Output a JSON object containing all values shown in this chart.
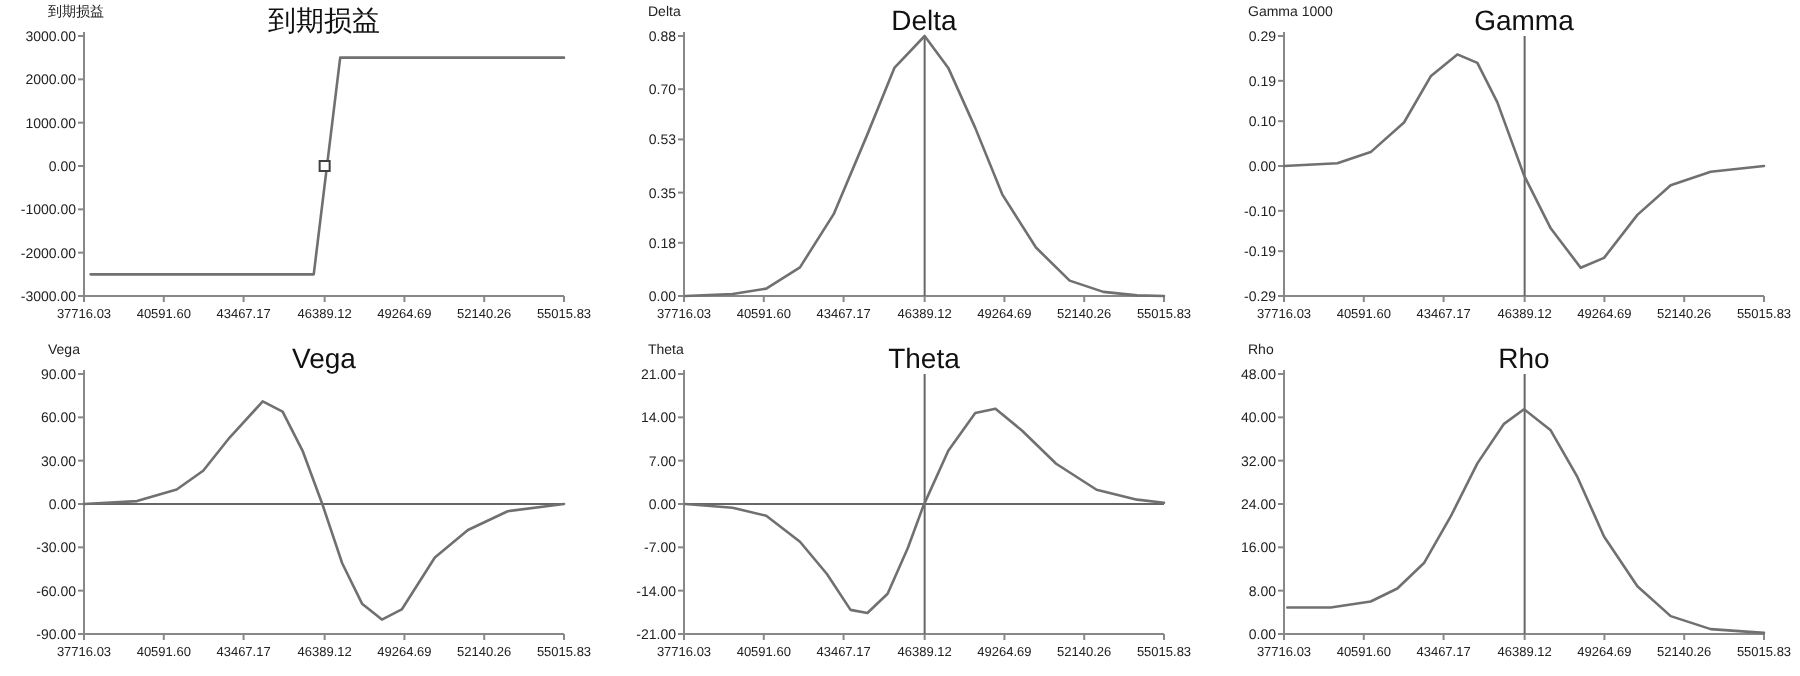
{
  "chart_data": [
    {
      "type": "line",
      "title": "到期损益",
      "ylabel": "到期损益",
      "xlim": [
        37716.03,
        55015.83
      ],
      "ylim": [
        -3000,
        3000
      ],
      "xticks": [
        {
          "value": 37716.03,
          "label": "37716.03"
        },
        {
          "value": 40591.6,
          "label": "40591.60"
        },
        {
          "value": 43467.17,
          "label": "43467.17"
        },
        {
          "value": 46389.12,
          "label": "46389.12"
        },
        {
          "value": 49264.69,
          "label": "49264.69"
        },
        {
          "value": 52140.26,
          "label": "52140.26"
        },
        {
          "value": 55015.83,
          "label": "55015.83"
        }
      ],
      "yticks": [
        {
          "value": -3000,
          "label": "-3000.00"
        },
        {
          "value": -2000,
          "label": "-2000.00"
        },
        {
          "value": -1000,
          "label": "-1000.00"
        },
        {
          "value": 0,
          "label": "0.00"
        },
        {
          "value": 1000,
          "label": "1000.00"
        },
        {
          "value": 2000,
          "label": "2000.00"
        },
        {
          "value": 3000,
          "label": "3000.00"
        }
      ],
      "series": [
        {
          "type": "line",
          "color": "#707070",
          "x": [
            37955,
            45996,
            46950,
            55015
          ],
          "values": [
            -2500,
            -2500,
            2500,
            2500
          ]
        },
        {
          "type": "scatter",
          "color": "#404040",
          "marker": "square",
          "x": [
            46389.12
          ],
          "values": [
            0
          ]
        }
      ]
    },
    {
      "type": "line",
      "title": "Delta",
      "ylabel": "Delta",
      "xlim": [
        37716.03,
        55015.83
      ],
      "ylim": [
        0,
        0.88
      ],
      "xticks": [
        {
          "value": 37716.03,
          "label": "37716.03"
        },
        {
          "value": 40591.6,
          "label": "40591.60"
        },
        {
          "value": 43467.17,
          "label": "43467.17"
        },
        {
          "value": 46389.12,
          "label": "46389.12"
        },
        {
          "value": 49264.69,
          "label": "49264.69"
        },
        {
          "value": 52140.26,
          "label": "52140.26"
        },
        {
          "value": 55015.83,
          "label": "55015.83"
        }
      ],
      "yticks": [
        {
          "value": 0,
          "label": "0.00"
        },
        {
          "value": 0.18,
          "label": "0.18"
        },
        {
          "value": 0.35,
          "label": "0.35"
        },
        {
          "value": 0.53,
          "label": "0.53"
        },
        {
          "value": 0.7,
          "label": "0.70"
        },
        {
          "value": 0.88,
          "label": "0.88"
        }
      ],
      "ref_lines": [
        {
          "axis": "x",
          "value": 46389.12
        }
      ],
      "series": [
        {
          "type": "line",
          "color": "#707070",
          "x": [
            37765,
            39466,
            40681,
            41896,
            43110,
            44325,
            45298,
            46389.12,
            47241,
            48213,
            49186,
            50401,
            51616,
            52831,
            54045,
            55015
          ],
          "values": [
            0,
            0.007,
            0.025,
            0.097,
            0.277,
            0.547,
            0.772,
            0.88,
            0.772,
            0.569,
            0.344,
            0.164,
            0.052,
            0.014,
            0.002,
            0
          ]
        }
      ]
    },
    {
      "type": "line",
      "title": "Gamma",
      "ylabel": "Gamma 1000",
      "xlim": [
        37716.03,
        55015.83
      ],
      "ylim": [
        -0.29,
        0.29
      ],
      "xticks": [
        {
          "value": 37716.03,
          "label": "37716.03"
        },
        {
          "value": 40591.6,
          "label": "40591.60"
        },
        {
          "value": 43467.17,
          "label": "43467.17"
        },
        {
          "value": 46389.12,
          "label": "46389.12"
        },
        {
          "value": 49264.69,
          "label": "49264.69"
        },
        {
          "value": 52140.26,
          "label": "52140.26"
        },
        {
          "value": 55015.83,
          "label": "55015.83"
        }
      ],
      "yticks": [
        {
          "value": -0.29,
          "label": "-0.29"
        },
        {
          "value": -0.19,
          "label": "-0.19"
        },
        {
          "value": -0.1,
          "label": "-0.10"
        },
        {
          "value": 0,
          "label": "0.00"
        },
        {
          "value": 0.1,
          "label": "0.10"
        },
        {
          "value": 0.19,
          "label": "0.19"
        },
        {
          "value": 0.29,
          "label": "0.29"
        }
      ],
      "ref_lines": [
        {
          "axis": "x",
          "value": 46389.12
        }
      ],
      "series": [
        {
          "type": "line",
          "color": "#707070",
          "x": [
            37717,
            39638,
            40840,
            42041,
            43003,
            43964,
            44685,
            45406,
            46367,
            47328,
            48409,
            49250,
            50452,
            51653,
            53095,
            55015
          ],
          "values": [
            0,
            0.006,
            0.031,
            0.097,
            0.2,
            0.249,
            0.23,
            0.142,
            -0.021,
            -0.139,
            -0.227,
            -0.205,
            -0.109,
            -0.043,
            -0.013,
            0
          ]
        }
      ]
    },
    {
      "type": "line",
      "title": "Vega",
      "ylabel": "Vega",
      "xlim": [
        37716.03,
        55015.83
      ],
      "ylim": [
        -90,
        90
      ],
      "xticks": [
        {
          "value": 37716.03,
          "label": "37716.03"
        },
        {
          "value": 40591.6,
          "label": "40591.60"
        },
        {
          "value": 43467.17,
          "label": "43467.17"
        },
        {
          "value": 46389.12,
          "label": "46389.12"
        },
        {
          "value": 49264.69,
          "label": "49264.69"
        },
        {
          "value": 52140.26,
          "label": "52140.26"
        },
        {
          "value": 55015.83,
          "label": "55015.83"
        }
      ],
      "yticks": [
        {
          "value": -90,
          "label": "-90.00"
        },
        {
          "value": -60,
          "label": "-60.00"
        },
        {
          "value": -30,
          "label": "-30.00"
        },
        {
          "value": 0,
          "label": "0.00"
        },
        {
          "value": 30,
          "label": "30.00"
        },
        {
          "value": 60,
          "label": "60.00"
        },
        {
          "value": 90,
          "label": "90.00"
        }
      ],
      "ref_lines": [
        {
          "axis": "y",
          "value": 0
        }
      ],
      "series": [
        {
          "type": "line",
          "color": "#707070",
          "x": [
            37717,
            39625,
            41056,
            42011,
            42965,
            44158,
            44874,
            45590,
            46305,
            47021,
            47737,
            48453,
            49168,
            50361,
            51554,
            52986,
            55015
          ],
          "values": [
            0,
            2,
            10,
            23,
            46,
            71,
            64,
            37,
            0,
            -41,
            -69,
            -80,
            -73,
            -37,
            -18,
            -5,
            0
          ]
        }
      ]
    },
    {
      "type": "line",
      "title": "Theta",
      "ylabel": "Theta",
      "xlim": [
        37716.03,
        55015.83
      ],
      "ylim": [
        -21,
        21
      ],
      "xticks": [
        {
          "value": 37716.03,
          "label": "37716.03"
        },
        {
          "value": 40591.6,
          "label": "40591.60"
        },
        {
          "value": 43467.17,
          "label": "43467.17"
        },
        {
          "value": 46389.12,
          "label": "46389.12"
        },
        {
          "value": 49264.69,
          "label": "49264.69"
        },
        {
          "value": 52140.26,
          "label": "52140.26"
        },
        {
          "value": 55015.83,
          "label": "55015.83"
        }
      ],
      "yticks": [
        {
          "value": -21,
          "label": "-21.00"
        },
        {
          "value": -14,
          "label": "-14.00"
        },
        {
          "value": -7,
          "label": "-7.00"
        },
        {
          "value": 0,
          "label": "0.00"
        },
        {
          "value": 7,
          "label": "7.00"
        },
        {
          "value": 14,
          "label": "14.00"
        },
        {
          "value": 21,
          "label": "21.00"
        }
      ],
      "ref_lines": [
        {
          "axis": "x",
          "value": 46389.12
        },
        {
          "axis": "y",
          "value": 0
        }
      ],
      "series": [
        {
          "type": "line",
          "color": "#707070",
          "x": [
            37765,
            39466,
            40681,
            41896,
            42868,
            43718,
            44325,
            45054,
            45783,
            46343,
            47241,
            48213,
            48942,
            49914,
            51129,
            52587,
            54045,
            55015
          ],
          "values": [
            0,
            -0.6,
            -1.9,
            -6.1,
            -11.3,
            -17.1,
            -17.6,
            -14.5,
            -7.1,
            -0.3,
            8.6,
            14.7,
            15.4,
            11.8,
            6.5,
            2.3,
            0.7,
            0.2
          ]
        }
      ]
    },
    {
      "type": "line",
      "title": "Rho",
      "ylabel": "Rho",
      "xlim": [
        37716.03,
        55015.83
      ],
      "ylim": [
        0,
        48
      ],
      "xticks": [
        {
          "value": 37716.03,
          "label": "37716.03"
        },
        {
          "value": 40591.6,
          "label": "40591.60"
        },
        {
          "value": 43467.17,
          "label": "43467.17"
        },
        {
          "value": 46389.12,
          "label": "46389.12"
        },
        {
          "value": 49264.69,
          "label": "49264.69"
        },
        {
          "value": 52140.26,
          "label": "52140.26"
        },
        {
          "value": 55015.83,
          "label": "55015.83"
        }
      ],
      "yticks": [
        {
          "value": 0,
          "label": "0.00"
        },
        {
          "value": 8,
          "label": "8.00"
        },
        {
          "value": 16,
          "label": "16.00"
        },
        {
          "value": 24,
          "label": "24.00"
        },
        {
          "value": 32,
          "label": "32.00"
        },
        {
          "value": 40,
          "label": "40.00"
        },
        {
          "value": 48,
          "label": "48.00"
        }
      ],
      "ref_lines": [
        {
          "axis": "x",
          "value": 46389.12
        }
      ],
      "series": [
        {
          "type": "line",
          "color": "#707070",
          "x": [
            37836,
            39398,
            40840,
            41801,
            42762,
            43724,
            44685,
            45645,
            46367,
            47328,
            48289,
            49250,
            50452,
            51653,
            53095,
            55015
          ],
          "values": [
            4.9,
            4.9,
            6.0,
            8.4,
            13.1,
            21.7,
            31.5,
            38.8,
            41.5,
            37.6,
            29.0,
            18.0,
            8.8,
            3.3,
            0.9,
            0.2
          ]
        }
      ]
    }
  ]
}
